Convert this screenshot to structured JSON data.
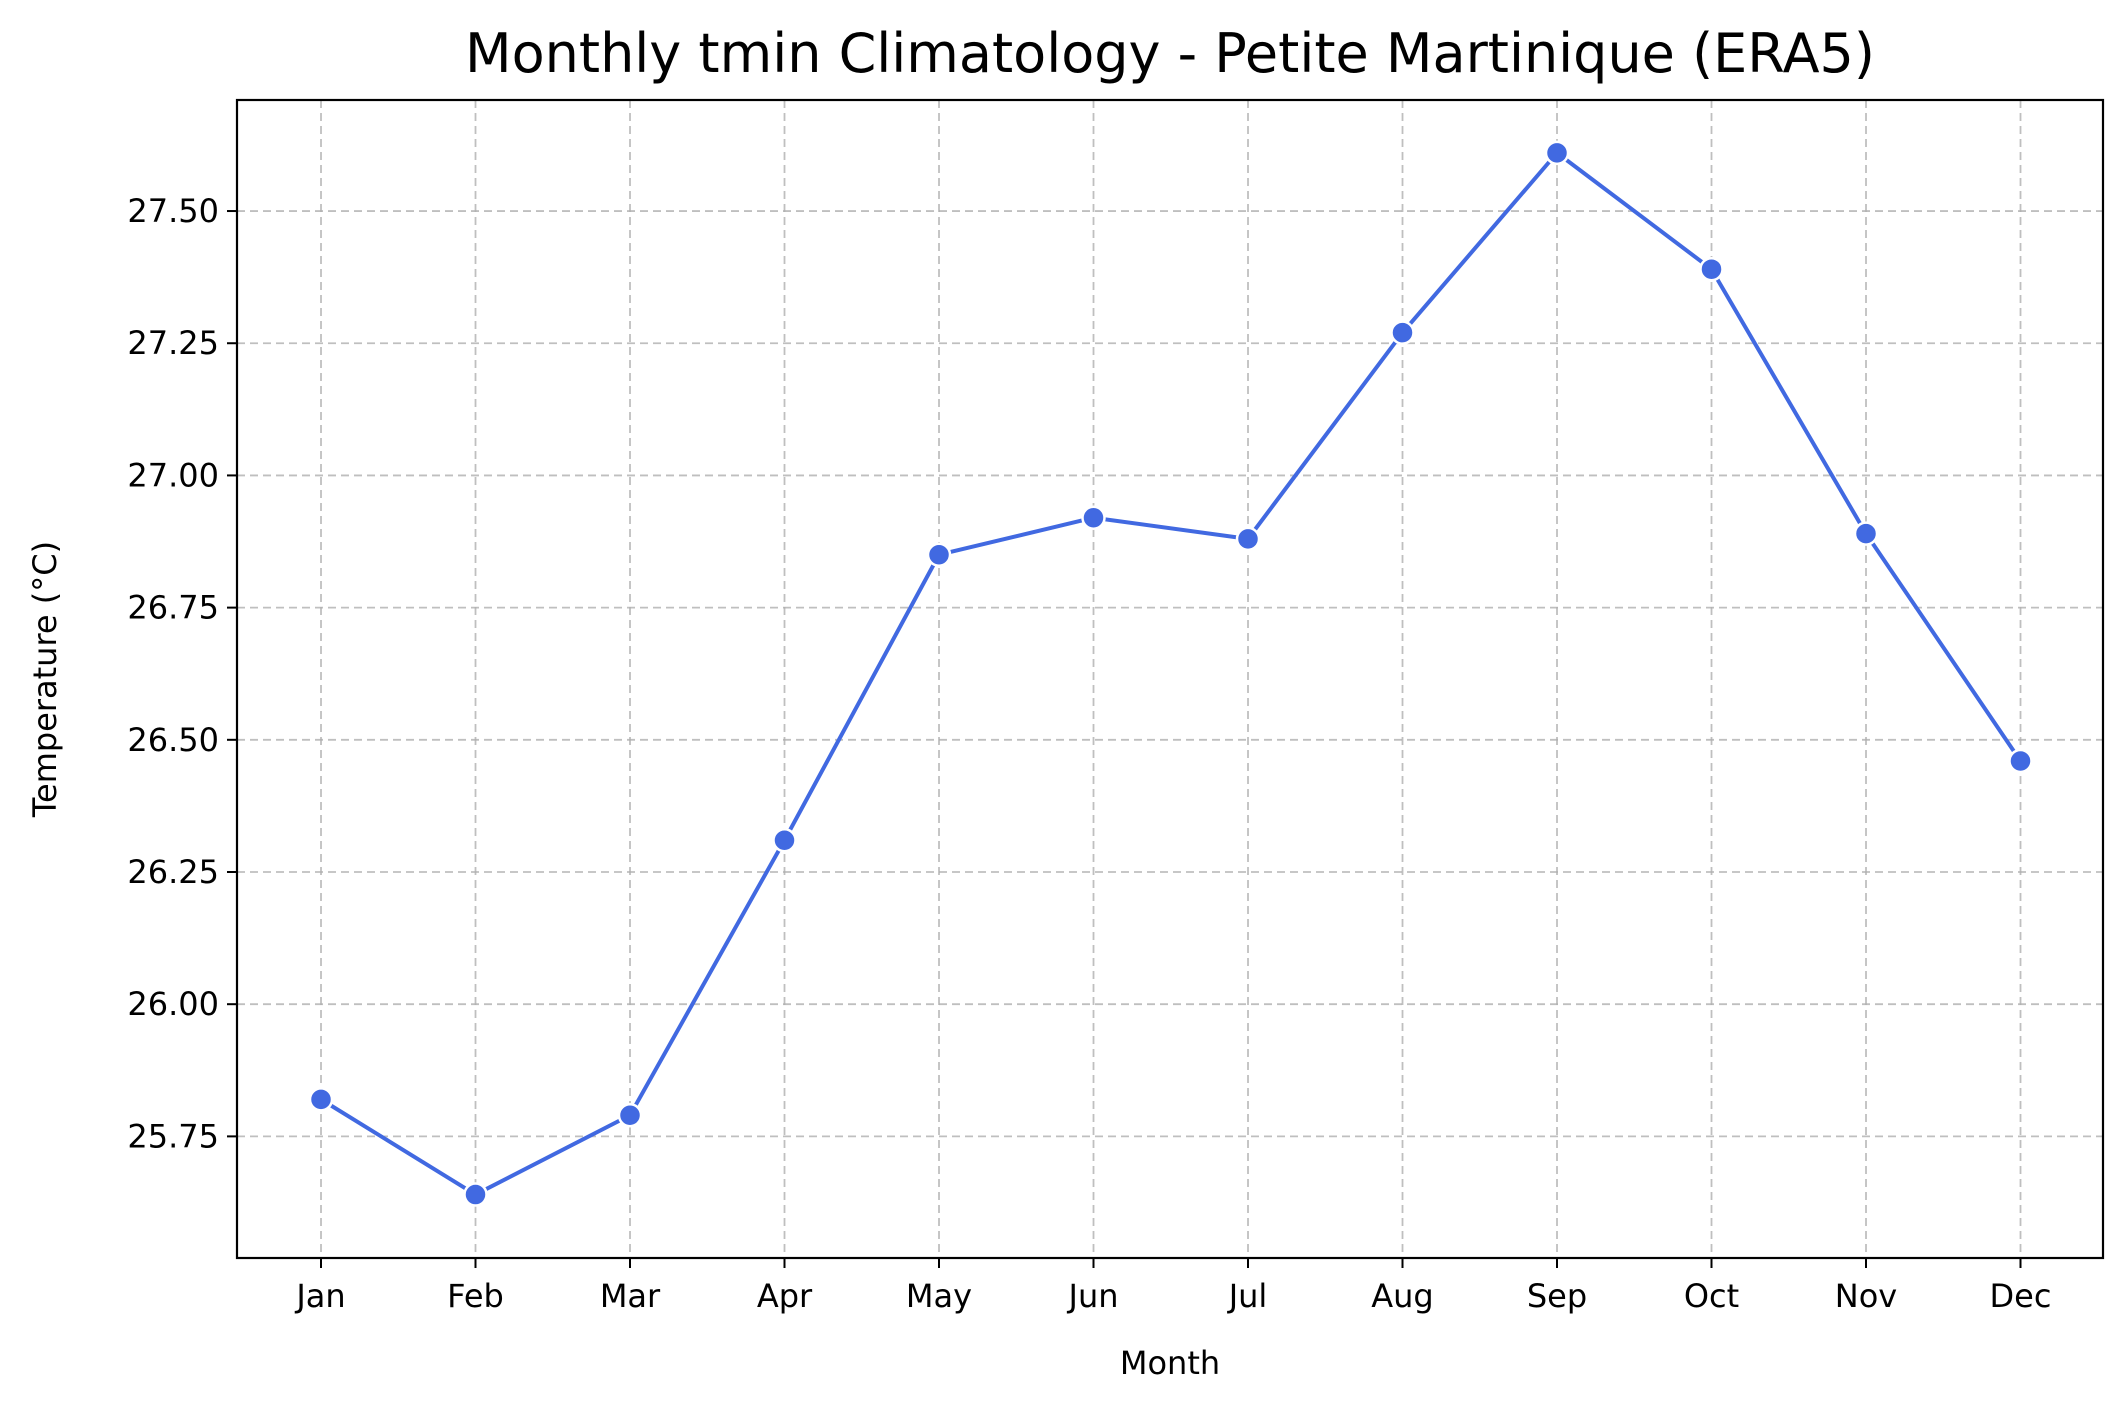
{
  "chart_data": {
    "type": "line",
    "title": "Monthly tmin Climatology - Petite Martinique (ERA5)",
    "xlabel": "Month",
    "ylabel": "Temperature (°C)",
    "categories": [
      "Jan",
      "Feb",
      "Mar",
      "Apr",
      "May",
      "Jun",
      "Jul",
      "Aug",
      "Sep",
      "Oct",
      "Nov",
      "Dec"
    ],
    "series": [
      {
        "values": [
          25.82,
          25.64,
          25.79,
          26.31,
          26.85,
          26.92,
          26.88,
          27.27,
          27.61,
          27.39,
          26.89,
          26.46
        ],
        "color": "#4169e1",
        "marker": "circle"
      }
    ],
    "yticks": [
      25.75,
      26.0,
      26.25,
      26.5,
      26.75,
      27.0,
      27.25,
      27.5
    ],
    "ytick_labels": [
      "25.75",
      "26.00",
      "26.25",
      "26.50",
      "26.75",
      "27.00",
      "27.25",
      "27.50"
    ],
    "ylim": [
      25.52,
      27.71
    ],
    "grid": true,
    "legend": "none"
  }
}
